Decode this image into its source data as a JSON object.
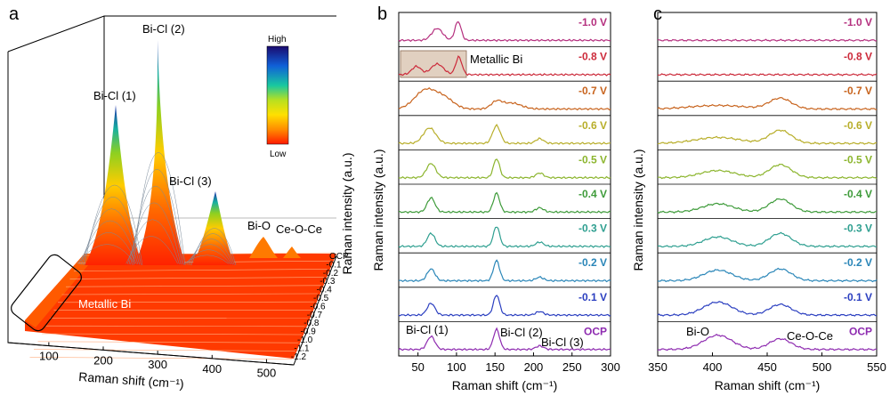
{
  "panel_a": {
    "letter": "a",
    "xlabel": "Raman shift (cm⁻¹)",
    "x_ticks": [
      "100",
      "200",
      "300",
      "400",
      "500"
    ],
    "potential_ticks": [
      "OCP",
      "-0.1",
      "-0.2",
      "-0.3",
      "-0.4",
      "-0.5",
      "-0.6",
      "-0.7",
      "-0.8",
      "-0.9",
      "-1.0",
      "-1.1",
      "-1.2"
    ],
    "colorbar_high": "High",
    "colorbar_low": "Low",
    "labels": {
      "bicl1": "Bi-Cl (1)",
      "bicl2": "Bi-Cl (2)",
      "bicl3": "Bi-Cl (3)",
      "bio": "Bi-O",
      "ceoce": "Ce-O-Ce",
      "metallic": "Metallic Bi"
    }
  },
  "panel_b": {
    "letter": "b",
    "xlabel": "Raman shift (cm⁻¹)",
    "ylabel": "Raman intensity (a.u.)",
    "x_ticks": [
      "50",
      "100",
      "150",
      "200",
      "250",
      "300"
    ],
    "metallic_label": "Metallic Bi",
    "peak_labels": {
      "bicl1": "Bi-Cl (1)",
      "bicl2": "Bi-Cl (2)",
      "bicl3": "Bi-Cl (3)"
    }
  },
  "panel_c": {
    "letter": "c",
    "xlabel": "Raman shift (cm⁻¹)",
    "ylabel": "Raman intensity (a.u.)",
    "x_ticks": [
      "350",
      "400",
      "450",
      "500",
      "550"
    ],
    "peak_labels": {
      "bio": "Bi-O",
      "ceoce": "Ce-O-Ce"
    }
  },
  "chart_data": [
    {
      "type": "line",
      "panel": "a",
      "xlabel": "Raman shift (cm⁻¹)",
      "xlim": [
        25,
        550
      ],
      "z_categories": [
        "OCP",
        "-0.1",
        "-0.2",
        "-0.3",
        "-0.4",
        "-0.5",
        "-0.6",
        "-0.7",
        "-0.8",
        "-0.9",
        "-1.0",
        "-1.1",
        "-1.2"
      ],
      "annotations": [
        "Bi-Cl (1)",
        "Bi-Cl (2)",
        "Bi-Cl (3)",
        "Bi-O",
        "Ce-O-Ce",
        "Metallic Bi"
      ],
      "colorbar": [
        "High",
        "Low"
      ]
    },
    {
      "type": "line",
      "panel": "b",
      "xlabel": "Raman shift (cm⁻¹)",
      "ylabel": "Raman intensity (a.u.)",
      "xlim": [
        25,
        300
      ],
      "series": [
        {
          "name": "-1.0 V",
          "color": "#b5307f",
          "peaks": [
            {
              "x": 75,
              "h": 0.5,
              "w": 7
            },
            {
              "x": 102,
              "h": 0.8,
              "w": 4
            }
          ]
        },
        {
          "name": "-0.8 V",
          "color": "#cc2a3a",
          "peaks": [
            {
              "x": 48,
              "h": 0.35,
              "w": 6
            },
            {
              "x": 75,
              "h": 0.45,
              "w": 8
            },
            {
              "x": 103,
              "h": 0.75,
              "w": 4
            }
          ]
        },
        {
          "name": "-0.7 V",
          "color": "#c8641e",
          "peaks": [
            {
              "x": 60,
              "h": 0.8,
              "w": 14
            },
            {
              "x": 85,
              "h": 0.4,
              "w": 12
            },
            {
              "x": 152,
              "h": 0.3,
              "w": 7
            },
            {
              "x": 172,
              "h": 0.25,
              "w": 12
            }
          ]
        },
        {
          "name": "-0.6 V",
          "color": "#b8ae2a",
          "peaks": [
            {
              "x": 65,
              "h": 0.65,
              "w": 8
            },
            {
              "x": 152,
              "h": 0.75,
              "w": 5
            },
            {
              "x": 208,
              "h": 0.2,
              "w": 5
            }
          ]
        },
        {
          "name": "-0.5 V",
          "color": "#8cb52e",
          "peaks": [
            {
              "x": 67,
              "h": 0.6,
              "w": 6
            },
            {
              "x": 152,
              "h": 0.8,
              "w": 4
            },
            {
              "x": 208,
              "h": 0.2,
              "w": 5
            }
          ]
        },
        {
          "name": "-0.4 V",
          "color": "#3e9b3a",
          "peaks": [
            {
              "x": 67,
              "h": 0.6,
              "w": 5
            },
            {
              "x": 152,
              "h": 0.8,
              "w": 4
            },
            {
              "x": 208,
              "h": 0.18,
              "w": 5
            }
          ]
        },
        {
          "name": "-0.3 V",
          "color": "#2e9f90",
          "peaks": [
            {
              "x": 67,
              "h": 0.55,
              "w": 5
            },
            {
              "x": 152,
              "h": 0.85,
              "w": 4
            },
            {
              "x": 208,
              "h": 0.18,
              "w": 5
            }
          ]
        },
        {
          "name": "-0.2 V",
          "color": "#2a86b8",
          "peaks": [
            {
              "x": 67,
              "h": 0.5,
              "w": 5
            },
            {
              "x": 152,
              "h": 0.85,
              "w": 4
            },
            {
              "x": 208,
              "h": 0.15,
              "w": 5
            }
          ]
        },
        {
          "name": "-0.1 V",
          "color": "#2b3fc0",
          "peaks": [
            {
              "x": 67,
              "h": 0.5,
              "w": 5
            },
            {
              "x": 152,
              "h": 0.85,
              "w": 4
            },
            {
              "x": 208,
              "h": 0.15,
              "w": 5
            }
          ]
        },
        {
          "name": "OCP",
          "color": "#8e2bb0",
          "peaks": [
            {
              "x": 67,
              "h": 0.55,
              "w": 5
            },
            {
              "x": 152,
              "h": 0.85,
              "w": 4
            },
            {
              "x": 208,
              "h": 0.15,
              "w": 5
            }
          ]
        }
      ]
    },
    {
      "type": "line",
      "panel": "c",
      "xlabel": "Raman shift (cm⁻¹)",
      "ylabel": "Raman intensity (a.u.)",
      "xlim": [
        350,
        550
      ],
      "series": [
        {
          "name": "-1.0 V",
          "color": "#b5307f",
          "peaks": []
        },
        {
          "name": "-0.8 V",
          "color": "#cc2a3a",
          "peaks": []
        },
        {
          "name": "-0.7 V",
          "color": "#c8641e",
          "peaks": [
            {
              "x": 405,
              "h": 0.15,
              "w": 25
            },
            {
              "x": 462,
              "h": 0.45,
              "w": 10
            }
          ]
        },
        {
          "name": "-0.6 V",
          "color": "#b8ae2a",
          "peaks": [
            {
              "x": 405,
              "h": 0.25,
              "w": 20
            },
            {
              "x": 462,
              "h": 0.55,
              "w": 10
            }
          ]
        },
        {
          "name": "-0.5 V",
          "color": "#8cb52e",
          "peaks": [
            {
              "x": 405,
              "h": 0.3,
              "w": 16
            },
            {
              "x": 462,
              "h": 0.55,
              "w": 10
            }
          ]
        },
        {
          "name": "-0.4 V",
          "color": "#3e9b3a",
          "peaks": [
            {
              "x": 405,
              "h": 0.35,
              "w": 14
            },
            {
              "x": 462,
              "h": 0.55,
              "w": 10
            }
          ]
        },
        {
          "name": "-0.3 V",
          "color": "#2e9f90",
          "peaks": [
            {
              "x": 405,
              "h": 0.4,
              "w": 13
            },
            {
              "x": 462,
              "h": 0.55,
              "w": 10
            }
          ]
        },
        {
          "name": "-0.2 V",
          "color": "#2a86b8",
          "peaks": [
            {
              "x": 405,
              "h": 0.45,
              "w": 13
            },
            {
              "x": 462,
              "h": 0.5,
              "w": 10
            }
          ]
        },
        {
          "name": "-0.1 V",
          "color": "#2b3fc0",
          "peaks": [
            {
              "x": 405,
              "h": 0.55,
              "w": 13
            },
            {
              "x": 462,
              "h": 0.45,
              "w": 10
            }
          ]
        },
        {
          "name": "OCP",
          "color": "#8e2bb0",
          "peaks": [
            {
              "x": 405,
              "h": 0.6,
              "w": 13
            },
            {
              "x": 462,
              "h": 0.45,
              "w": 10
            }
          ]
        }
      ]
    }
  ]
}
